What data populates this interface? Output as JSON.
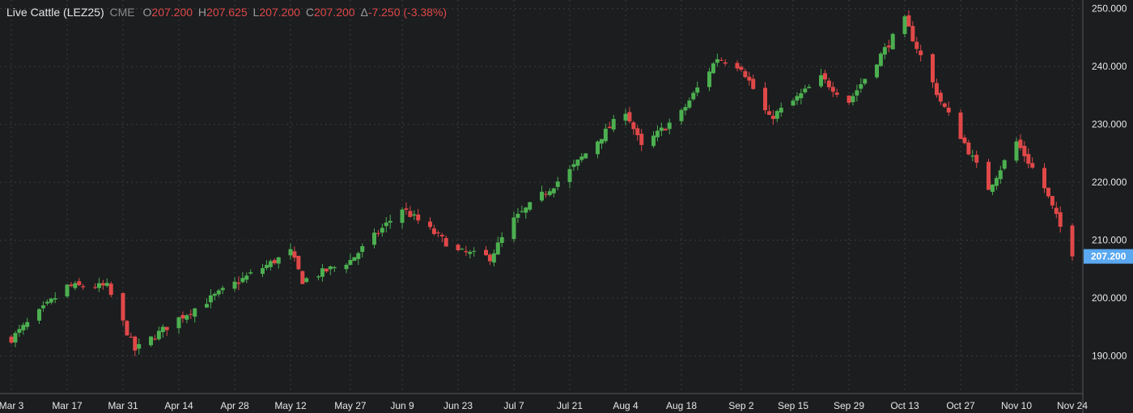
{
  "header": {
    "title": "Live Cattle (LEZ25)",
    "exchange": "CME",
    "open_key": "O",
    "open": "207.200",
    "high_key": "H",
    "high": "207.625",
    "low_key": "L",
    "low": "207.200",
    "close_key": "C",
    "close": "207.200",
    "change_key": "Δ",
    "change": "-7.250 (-3.38%)"
  },
  "colors": {
    "background": "#1b1d1f",
    "up": "#4caf50",
    "down": "#e04848",
    "grid": "#3a3d40",
    "axis_text": "#e6e6e6",
    "last_price_bg": "#5aa8f0"
  },
  "chart_data": {
    "type": "candlestick",
    "x_ticks": [
      "Mar 3",
      "Mar 17",
      "Mar 31",
      "Apr 14",
      "Apr 28",
      "May 12",
      "May 27",
      "Jun 9",
      "Jun 23",
      "Jul 7",
      "Jul 21",
      "Aug 4",
      "Aug 18",
      "Sep 2",
      "Sep 15",
      "Sep 29",
      "Oct 13",
      "Oct 27",
      "Nov 10",
      "Nov 24"
    ],
    "y_ticks": [
      "190.000",
      "200.000",
      "210.000",
      "220.000",
      "230.000",
      "240.000",
      "250.000"
    ],
    "ylim": [
      183.5,
      251.5
    ],
    "last_price": "207.200",
    "grid": true,
    "close_path": [
      {
        "date": "Mar 3",
        "close": 193.0
      },
      {
        "date": "Mar 17",
        "close": 202.0
      },
      {
        "date": "Mar 27",
        "close": 202.0
      },
      {
        "date": "Apr 3",
        "close": 191.0
      },
      {
        "date": "Apr 14",
        "close": 196.5
      },
      {
        "date": "Apr 28",
        "close": 202.5
      },
      {
        "date": "May 12",
        "close": 208.0
      },
      {
        "date": "May 15",
        "close": 203.0
      },
      {
        "date": "May 27",
        "close": 206.5
      },
      {
        "date": "Jun 9",
        "close": 215.5
      },
      {
        "date": "Jun 23",
        "close": 208.0
      },
      {
        "date": "Jul 1",
        "close": 207.0
      },
      {
        "date": "Jul 7",
        "close": 213.5
      },
      {
        "date": "Jul 21",
        "close": 222.0
      },
      {
        "date": "Aug 4",
        "close": 232.5
      },
      {
        "date": "Aug 8",
        "close": 226.0
      },
      {
        "date": "Aug 18",
        "close": 232.0
      },
      {
        "date": "Aug 27",
        "close": 241.5
      },
      {
        "date": "Sep 2",
        "close": 240.0
      },
      {
        "date": "Sep 9",
        "close": 231.0
      },
      {
        "date": "Sep 15",
        "close": 234.0
      },
      {
        "date": "Sep 22",
        "close": 238.0
      },
      {
        "date": "Sep 29",
        "close": 234.0
      },
      {
        "date": "Oct 13",
        "close": 248.0
      },
      {
        "date": "Oct 22",
        "close": 234.0
      },
      {
        "date": "Oct 27",
        "close": 228.0
      },
      {
        "date": "Nov 3",
        "close": 219.0
      },
      {
        "date": "Nov 10",
        "close": 227.0
      },
      {
        "date": "Nov 17",
        "close": 219.0
      },
      {
        "date": "Nov 24",
        "close": 207.2
      }
    ]
  }
}
